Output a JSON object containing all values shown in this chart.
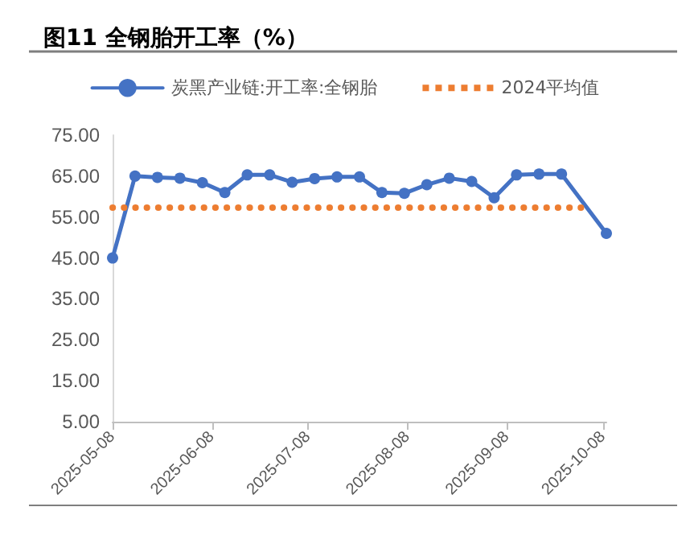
{
  "chart_data": {
    "type": "line",
    "title": "图11 全钢胎开工率（%）",
    "x": [
      "2025-05-08",
      "2025-05-15",
      "2025-05-22",
      "2025-05-29",
      "2025-06-05",
      "2025-06-12",
      "2025-06-19",
      "2025-06-26",
      "2025-07-03",
      "2025-07-10",
      "2025-07-17",
      "2025-07-24",
      "2025-07-31",
      "2025-08-07",
      "2025-08-14",
      "2025-08-21",
      "2025-08-28",
      "2025-09-04",
      "2025-09-11",
      "2025-09-18",
      "2025-09-25",
      "2025-10-09"
    ],
    "series": [
      {
        "name": "炭黑产业链:开工率:全钢胎",
        "color": "#4472c4",
        "marker": "circle",
        "line_style": "solid",
        "values": [
          45.0,
          65.0,
          64.7,
          64.5,
          63.4,
          61.0,
          65.3,
          65.3,
          63.5,
          64.4,
          64.8,
          64.8,
          61.0,
          60.8,
          62.9,
          64.5,
          63.7,
          59.7,
          65.3,
          65.5,
          65.5,
          51.0
        ]
      },
      {
        "name": "2024平均值",
        "color": "#ed7d31",
        "marker": "none",
        "line_style": "dotted",
        "x": [
          "2025-05-08",
          "2025-10-02"
        ],
        "values": [
          57.3,
          57.3
        ]
      }
    ],
    "xlim": [
      "2025-05-08",
      "2025-10-09"
    ],
    "xticks": [
      "2025-05-08",
      "2025-06-08",
      "2025-07-08",
      "2025-08-08",
      "2025-09-08",
      "2025-10-08"
    ],
    "ylim": [
      5,
      75
    ],
    "yticks": [
      {
        "value": 5,
        "label": "5.00"
      },
      {
        "value": 15,
        "label": "15.00"
      },
      {
        "value": 25,
        "label": "25.00"
      },
      {
        "value": 35,
        "label": "35.00"
      },
      {
        "value": 45,
        "label": "45.00"
      },
      {
        "value": 55,
        "label": "55.00"
      },
      {
        "value": 65,
        "label": "65.00"
      },
      {
        "value": 75,
        "label": "75.00"
      }
    ],
    "grid": false,
    "legend": "top"
  }
}
